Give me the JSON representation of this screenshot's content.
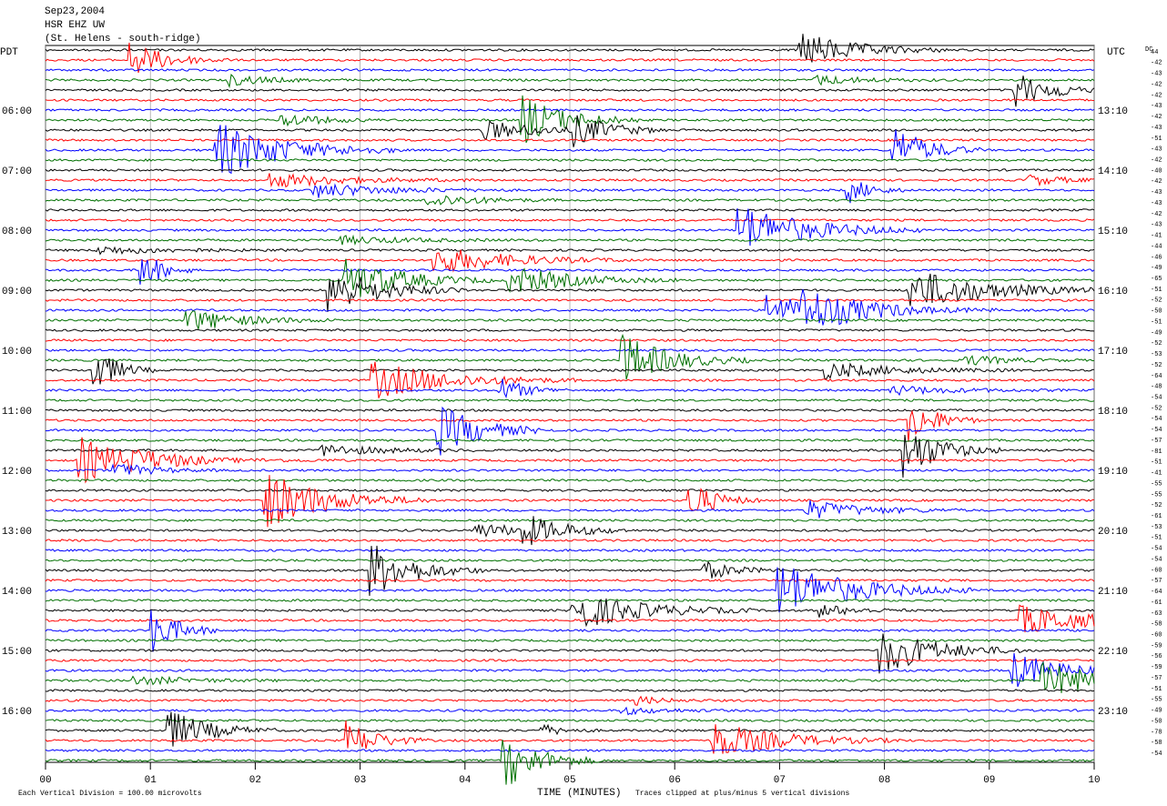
{
  "header": {
    "date": "Sep23,2004",
    "station": "HSR EHZ UW",
    "location": "(St. Helens - south-ridge)"
  },
  "left_axis": {
    "title": "PDT",
    "labels": [
      "06:00",
      "07:00",
      "08:00",
      "09:00",
      "10:00",
      "11:00",
      "12:00",
      "13:00",
      "14:00",
      "15:00",
      "16:00"
    ]
  },
  "right_axis": {
    "title": "UTC",
    "labels": [
      "13:10",
      "14:10",
      "15:10",
      "16:10",
      "17:10",
      "18:10",
      "19:10",
      "20:10",
      "21:10",
      "22:10",
      "23:10"
    ]
  },
  "dc": {
    "title": "DC",
    "values": [
      "44",
      "-42",
      "-43",
      "-42",
      "-42",
      "-43",
      "-42",
      "-43",
      "-51",
      "-43",
      "-42",
      "-40",
      "-42",
      "-43",
      "-43",
      "-42",
      "-43",
      "-41",
      "-44",
      "-46",
      "-49",
      "-65",
      "-51",
      "-52",
      "-50",
      "-51",
      "-49",
      "-52",
      "-53",
      "-52",
      "-64",
      "-48",
      "-54",
      "-52",
      "-54",
      "-54",
      "-57",
      "-81",
      "-51",
      "-41",
      "-55",
      "-55",
      "-52",
      "-61",
      "-53",
      "-51",
      "-54",
      "-54",
      "-60",
      "-57",
      "-64",
      "-61",
      "-63",
      "-58",
      "-60",
      "-59",
      "-56",
      "-59",
      "-57",
      "-51",
      "-55",
      "-49",
      "-50",
      "-78",
      "-58",
      "-54"
    ]
  },
  "x_axis": {
    "title": "TIME (MINUTES)",
    "labels": [
      "00",
      "01",
      "02",
      "03",
      "04",
      "05",
      "06",
      "07",
      "08",
      "09",
      "10"
    ]
  },
  "footer": {
    "scale": "Each Vertical Division =  100.00 microvolts",
    "clip": "Traces clipped at plus/minus 5 vertical divisions"
  }
}
